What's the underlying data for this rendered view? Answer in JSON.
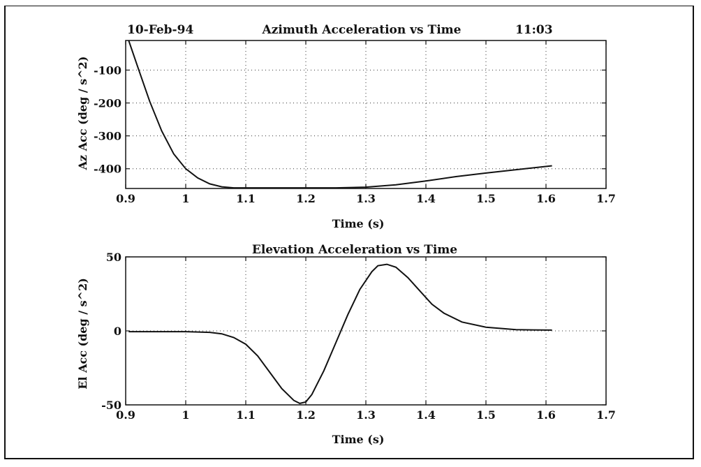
{
  "header": {
    "date": "10-Feb-94",
    "time": "11:03"
  },
  "chart_data": [
    {
      "type": "line",
      "title": "Azimuth Acceleration vs Time",
      "xlabel": "Time (s)",
      "ylabel": "Az Acc (deg / s^2)",
      "xlim": [
        0.9,
        1.7
      ],
      "ylim": [
        -460,
        -10
      ],
      "xticks": [
        0.9,
        1.0,
        1.1,
        1.2,
        1.3,
        1.4,
        1.5,
        1.6,
        1.7
      ],
      "xtick_labels": [
        "0.9",
        "1",
        "1.1",
        "1.2",
        "1.3",
        "1.4",
        "1.5",
        "1.6",
        "1.7"
      ],
      "yticks": [
        -100,
        -200,
        -300,
        -400
      ],
      "ytick_labels": [
        "-100",
        "-200",
        "-300",
        "-400"
      ],
      "grid": true,
      "series": [
        {
          "x": [
            0.905,
            0.92,
            0.94,
            0.96,
            0.98,
            1.0,
            1.02,
            1.04,
            1.06,
            1.08,
            1.1,
            1.15,
            1.2,
            1.25,
            1.3,
            1.35,
            1.4,
            1.45,
            1.5,
            1.55,
            1.61
          ],
          "values": [
            -10,
            -90,
            -195,
            -285,
            -355,
            -400,
            -428,
            -446,
            -455,
            -458,
            -458,
            -458,
            -458,
            -458,
            -456,
            -449,
            -437,
            -424,
            -413,
            -403,
            -391
          ]
        }
      ]
    },
    {
      "type": "line",
      "title": "Elevation Acceleration vs Time",
      "xlabel": "Time (s)",
      "ylabel": "El Acc (deg / s^2)",
      "xlim": [
        0.9,
        1.7
      ],
      "ylim": [
        -50,
        50
      ],
      "xticks": [
        0.9,
        1.0,
        1.1,
        1.2,
        1.3,
        1.4,
        1.5,
        1.6,
        1.7
      ],
      "xtick_labels": [
        "0.9",
        "1",
        "1.1",
        "1.2",
        "1.3",
        "1.4",
        "1.5",
        "1.6",
        "1.7"
      ],
      "yticks": [
        50,
        0,
        -50
      ],
      "ytick_labels": [
        "50",
        "0",
        "-50"
      ],
      "grid": true,
      "series": [
        {
          "x": [
            0.905,
            0.95,
            1.0,
            1.04,
            1.06,
            1.08,
            1.1,
            1.12,
            1.14,
            1.16,
            1.18,
            1.19,
            1.2,
            1.21,
            1.23,
            1.25,
            1.27,
            1.29,
            1.31,
            1.32,
            1.335,
            1.35,
            1.37,
            1.39,
            1.41,
            1.43,
            1.46,
            1.5,
            1.55,
            1.61
          ],
          "values": [
            -0.5,
            -0.5,
            -0.5,
            -1,
            -2,
            -4.5,
            -9,
            -17,
            -28,
            -39,
            -47,
            -49,
            -48,
            -43,
            -27,
            -8,
            11,
            28,
            40,
            44,
            45,
            43,
            36,
            27,
            18,
            12,
            6,
            2.5,
            0.8,
            0.5
          ]
        }
      ]
    }
  ]
}
